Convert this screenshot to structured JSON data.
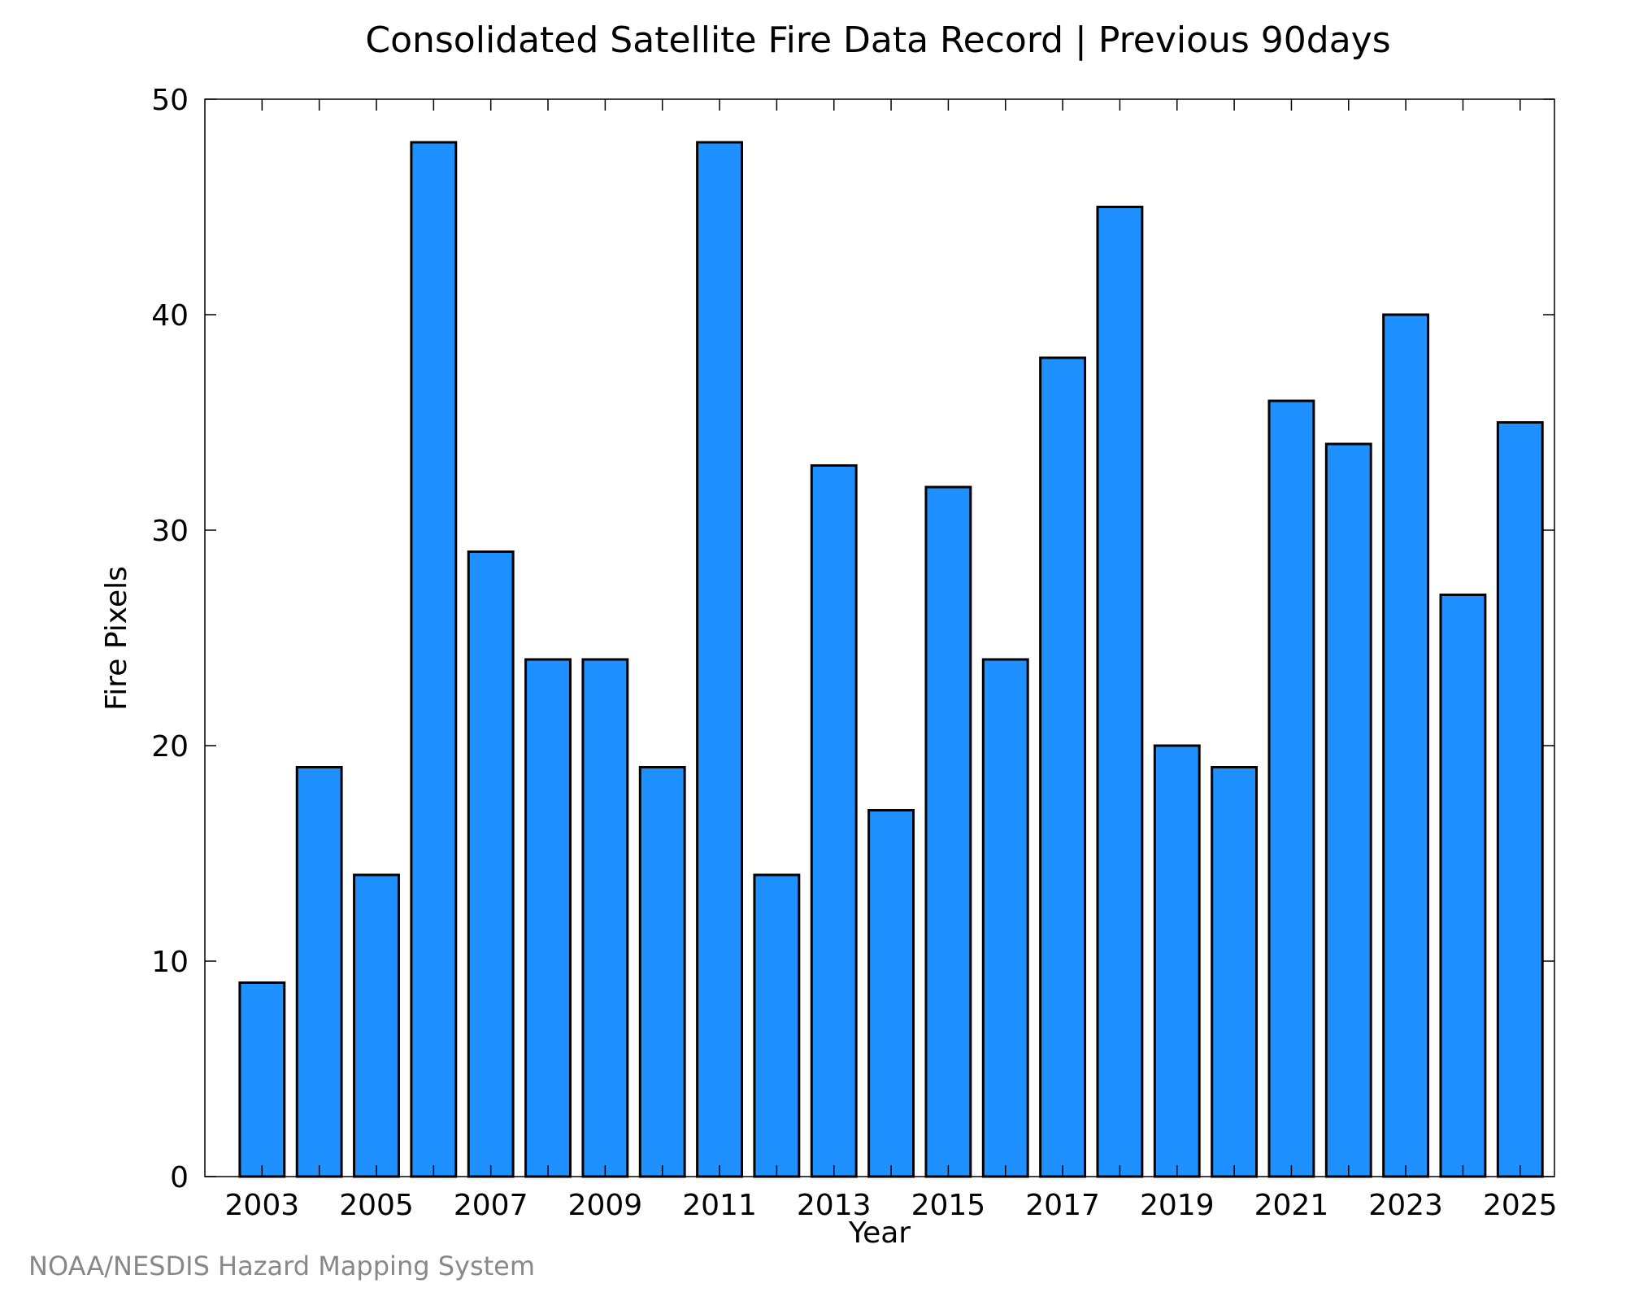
{
  "chart_data": {
    "type": "bar",
    "title": "Consolidated Satellite Fire Data Record | Previous 90days",
    "xlabel": "Year",
    "ylabel": "Fire Pixels",
    "categories": [
      "2003",
      "2004",
      "2005",
      "2006",
      "2007",
      "2008",
      "2009",
      "2010",
      "2011",
      "2012",
      "2013",
      "2014",
      "2015",
      "2016",
      "2017",
      "2018",
      "2019",
      "2020",
      "2021",
      "2022",
      "2023",
      "2024",
      "2025"
    ],
    "values": [
      9,
      19,
      14,
      48,
      29,
      24,
      24,
      19,
      48,
      14,
      33,
      17,
      32,
      24,
      38,
      45,
      20,
      19,
      36,
      34,
      40,
      27,
      35
    ],
    "x_tick_labels": [
      "2003",
      "2005",
      "2007",
      "2009",
      "2011",
      "2013",
      "2015",
      "2017",
      "2019",
      "2021",
      "2023",
      "2025"
    ],
    "y_tick_labels": [
      "0",
      "10",
      "20",
      "30",
      "40",
      "50"
    ],
    "ylim": [
      0,
      50
    ],
    "grid": false,
    "bar_color": "#1e90ff",
    "bar_edge_color": "#000000"
  },
  "credit": "NOAA/NESDIS Hazard Mapping System"
}
